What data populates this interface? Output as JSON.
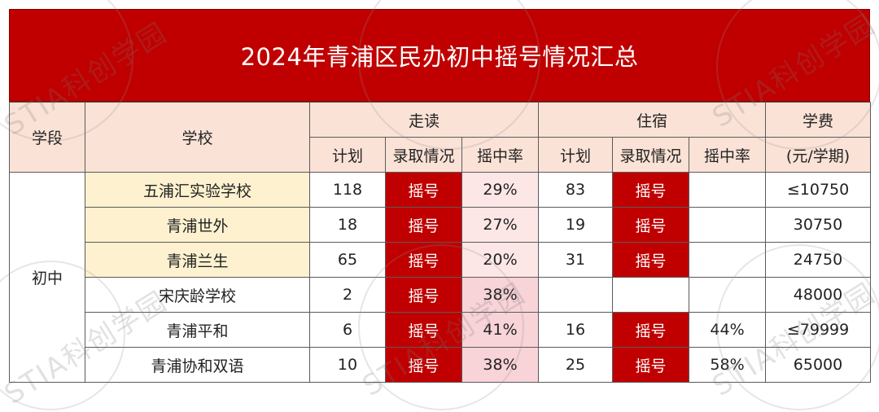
{
  "title": "2024年青浦区民办初中摇号情况汇总",
  "watermark": "STIA科创学园",
  "headers": {
    "stage": "学段",
    "school": "学校",
    "day": "走读",
    "boarding": "住宿",
    "fee_line1": "学费",
    "fee_line2": "(元/学期)",
    "plan": "计划",
    "admission": "录取情况",
    "rate": "摇中率"
  },
  "stage_value": "初中",
  "rows": [
    {
      "school": "五浦汇实验学校",
      "day_plan": "118",
      "day_admission": "摇号",
      "day_rate": "29%",
      "board_plan": "83",
      "board_admission": "摇号",
      "board_rate": "",
      "fee": "≤10750"
    },
    {
      "school": "青浦世外",
      "day_plan": "18",
      "day_admission": "摇号",
      "day_rate": "27%",
      "board_plan": "19",
      "board_admission": "摇号",
      "board_rate": "",
      "fee": "30750"
    },
    {
      "school": "青浦兰生",
      "day_plan": "65",
      "day_admission": "摇号",
      "day_rate": "20%",
      "board_plan": "31",
      "board_admission": "摇号",
      "board_rate": "",
      "fee": "24750"
    },
    {
      "school": "宋庆龄学校",
      "day_plan": "2",
      "day_admission": "摇号",
      "day_rate": "38%",
      "board_plan": "",
      "board_admission": "",
      "board_rate": "",
      "fee": "48000"
    },
    {
      "school": "青浦平和",
      "day_plan": "6",
      "day_admission": "摇号",
      "day_rate": "41%",
      "board_plan": "16",
      "board_admission": "摇号",
      "board_rate": "44%",
      "fee": "≤79999"
    },
    {
      "school": "青浦协和双语",
      "day_plan": "10",
      "day_admission": "摇号",
      "day_rate": "38%",
      "board_plan": "25",
      "board_admission": "摇号",
      "board_rate": "58%",
      "fee": "65000"
    }
  ],
  "colors": {
    "banner": "#c00000",
    "header_bg": "#fbe2d6",
    "school_highlight": "#fdf1cf",
    "lottery_cell": "#c00000",
    "rate_highlight": "#f8d3d8"
  }
}
